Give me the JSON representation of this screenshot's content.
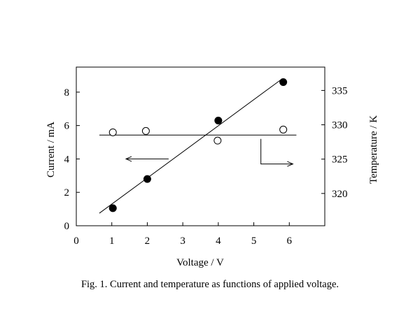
{
  "caption": "Fig. 1. Current and temperature as functions of applied voltage.",
  "chart_data": {
    "type": "scatter",
    "title": "",
    "xlabel": "Voltage / V",
    "ylabel_left": "Current / mA",
    "ylabel_right": "Temperature / K",
    "xlim": [
      0,
      7
    ],
    "ylim_left": [
      0,
      9.5
    ],
    "ylim_right": [
      315.3,
      338.4
    ],
    "x_ticks": [
      "0",
      "1",
      "2",
      "3",
      "4",
      "5",
      "6"
    ],
    "y_left_ticks": [
      "0",
      "2",
      "4",
      "6",
      "8"
    ],
    "y_right_ticks": [
      "320",
      "325",
      "330",
      "335"
    ],
    "grid": false,
    "legend": "none",
    "series": [
      {
        "axis": "left",
        "marker": "filled-circle",
        "x": [
          1.03,
          2.0,
          4.0,
          5.83
        ],
        "y": [
          1.05,
          2.8,
          6.3,
          8.6
        ]
      },
      {
        "axis": "right",
        "marker": "open-circle",
        "x": [
          1.03,
          1.96,
          3.98,
          5.83
        ],
        "y": [
          328.9,
          329.1,
          327.7,
          329.3
        ]
      }
    ],
    "fits": [
      {
        "axis": "left",
        "x": [
          0.65,
          5.8
        ],
        "y": [
          0.75,
          8.8
        ]
      },
      {
        "axis": "right",
        "x": [
          0.65,
          6.2
        ],
        "y": [
          328.5,
          328.5
        ]
      }
    ],
    "annotations": [
      {
        "kind": "arrow",
        "points_to": "left-axis",
        "x": [
          2.6,
          1.4
        ],
        "y": [
          4.0,
          4.0
        ]
      },
      {
        "kind": "arrow",
        "points_to": "right-axis",
        "x": [
          5.2,
          5.2,
          6.1
        ],
        "y": [
          5.2,
          3.7,
          3.7
        ]
      }
    ]
  }
}
